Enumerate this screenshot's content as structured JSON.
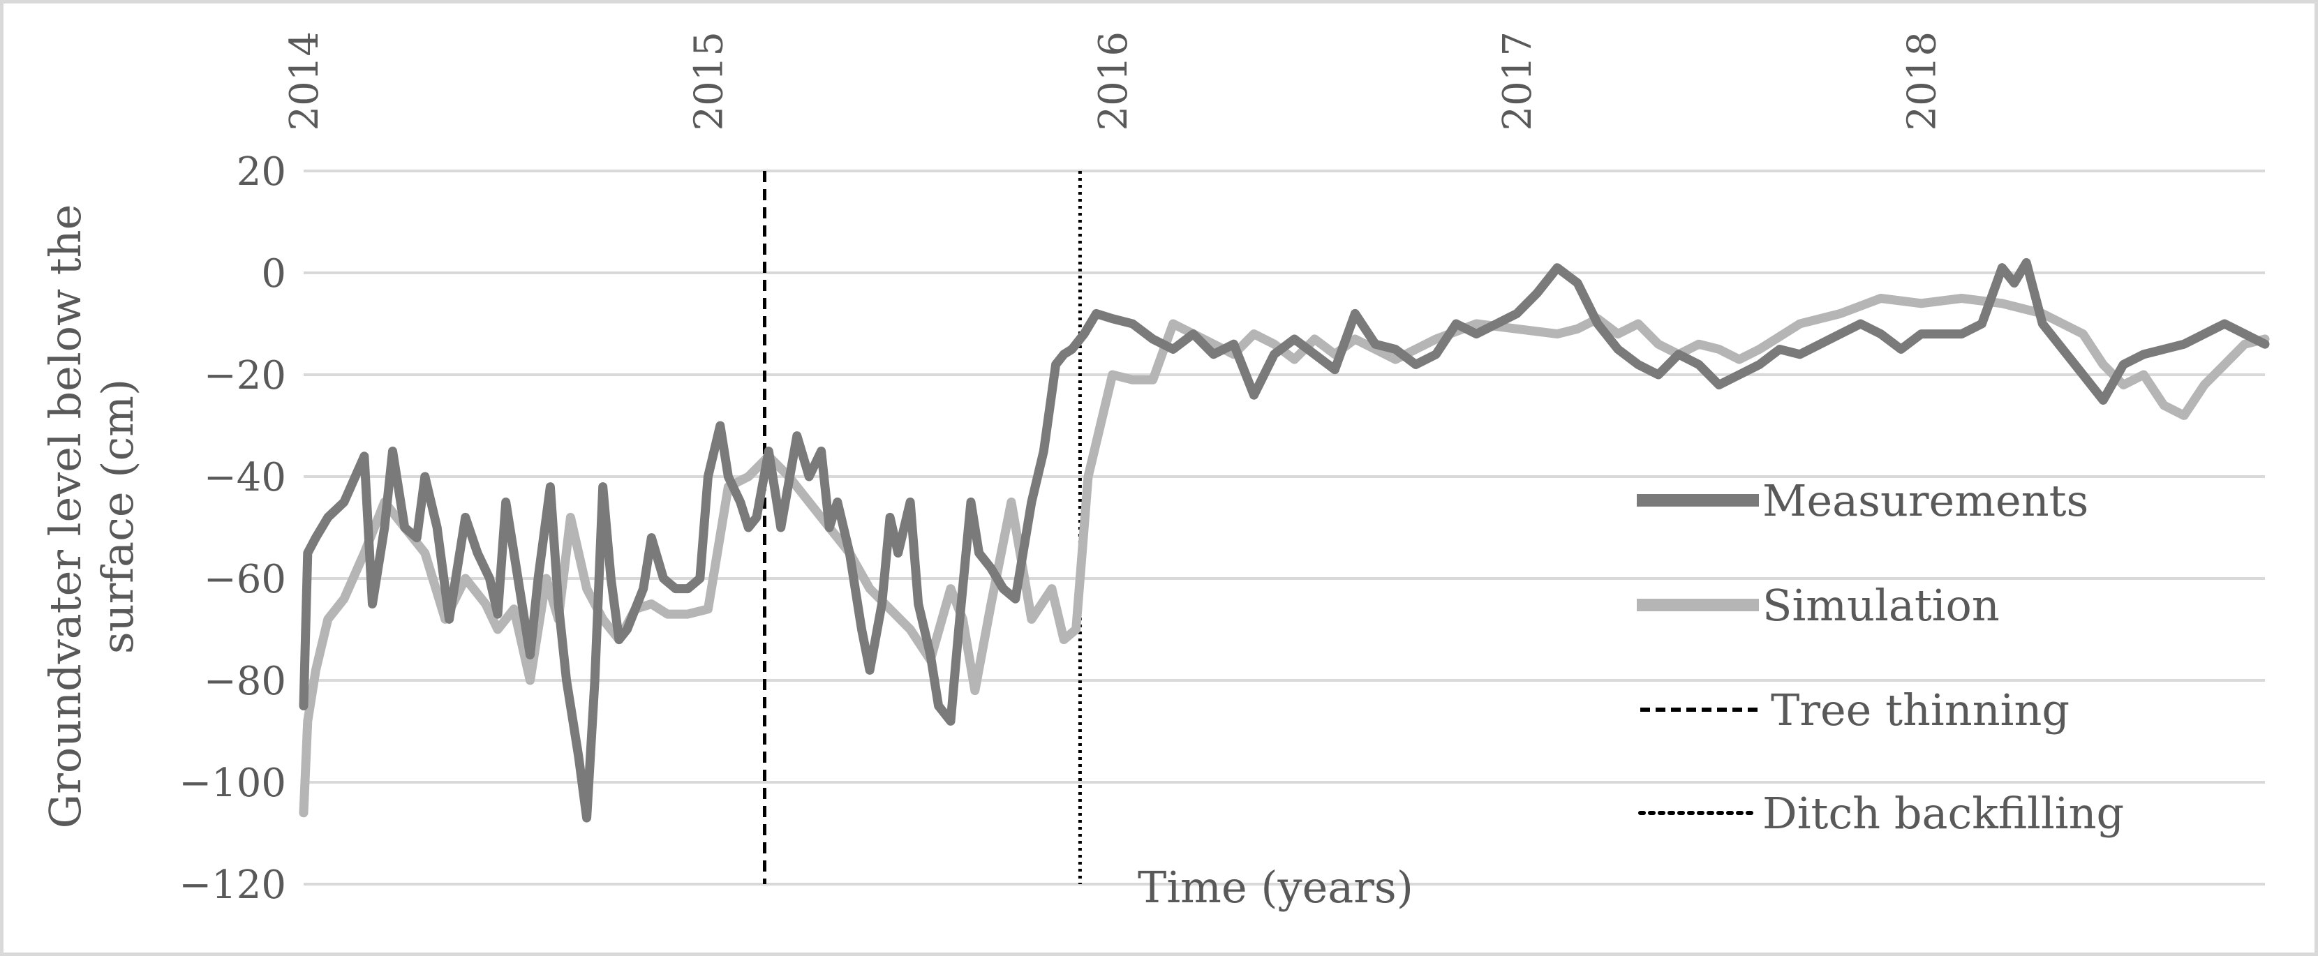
{
  "chart_data": {
    "type": "line",
    "title": "",
    "xlabel": "Time (years)",
    "ylabel_lines": [
      "Groundvater level below the",
      "surface (cm)"
    ],
    "x_ticks": [
      "2014",
      "2015",
      "2016",
      "2017",
      "2018"
    ],
    "y_ticks": [
      "20",
      "0",
      "−20",
      "−40",
      "−60",
      "−80",
      "−100",
      "−120"
    ],
    "xlim": [
      2014.0,
      2018.85
    ],
    "ylim": [
      -120,
      20
    ],
    "grid": "horizontal",
    "legend_position": "right",
    "colors": {
      "measurements": "#7a7a7a",
      "simulation": "#b5b5b5",
      "tree_thinning": "#000000",
      "ditch_backfilling": "#000000",
      "grid": "#d9d9d9",
      "text": "#595959"
    },
    "series": [
      {
        "name": "Measurements",
        "x": [
          2014.0,
          2014.01,
          2014.03,
          2014.06,
          2014.1,
          2014.15,
          2014.17,
          2014.2,
          2014.22,
          2014.25,
          2014.28,
          2014.3,
          2014.33,
          2014.36,
          2014.4,
          2014.43,
          2014.46,
          2014.48,
          2014.5,
          2014.53,
          2014.56,
          2014.58,
          2014.61,
          2014.63,
          2014.65,
          2014.68,
          2014.7,
          2014.72,
          2014.74,
          2014.76,
          2014.78,
          2014.8,
          2014.82,
          2014.84,
          2014.86,
          2014.89,
          2014.92,
          2014.95,
          2014.98,
          2015.0,
          2015.03,
          2015.05,
          2015.08,
          2015.1,
          2015.12,
          2015.15,
          2015.18,
          2015.22,
          2015.25,
          2015.28,
          2015.3,
          2015.32,
          2015.35,
          2015.38,
          2015.4,
          2015.43,
          2015.45,
          2015.47,
          2015.5,
          2015.52,
          2015.55,
          2015.57,
          2015.6,
          2015.62,
          2015.65,
          2015.67,
          2015.7,
          2015.73,
          2015.76,
          2015.8,
          2015.83,
          2015.86,
          2015.88,
          2015.9,
          2015.93,
          2015.96,
          2016.0,
          2016.05,
          2016.1,
          2016.15,
          2016.2,
          2016.25,
          2016.3,
          2016.35,
          2016.4,
          2016.45,
          2016.5,
          2016.55,
          2016.6,
          2016.65,
          2016.7,
          2016.75,
          2016.8,
          2016.85,
          2016.9,
          2016.95,
          2017.0,
          2017.05,
          2017.1,
          2017.15,
          2017.2,
          2017.25,
          2017.3,
          2017.35,
          2017.4,
          2017.45,
          2017.5,
          2017.55,
          2017.6,
          2017.65,
          2017.7,
          2017.75,
          2017.8,
          2017.85,
          2017.9,
          2017.95,
          2018.0,
          2018.05,
          2018.1,
          2018.15,
          2018.2,
          2018.23,
          2018.26,
          2018.3,
          2018.35,
          2018.4,
          2018.45,
          2018.5,
          2018.55,
          2018.6,
          2018.65,
          2018.7,
          2018.75,
          2018.8,
          2018.85
        ],
        "y": [
          -85,
          -55,
          -52,
          -48,
          -45,
          -36,
          -65,
          -50,
          -35,
          -50,
          -52,
          -40,
          -50,
          -68,
          -48,
          -55,
          -60,
          -67,
          -45,
          -60,
          -75,
          -60,
          -42,
          -65,
          -80,
          -95,
          -107,
          -80,
          -42,
          -60,
          -72,
          -70,
          -66,
          -62,
          -52,
          -60,
          -62,
          -62,
          -60,
          -40,
          -30,
          -40,
          -45,
          -50,
          -48,
          -35,
          -50,
          -32,
          -40,
          -35,
          -50,
          -45,
          -55,
          -70,
          -78,
          -65,
          -48,
          -55,
          -45,
          -65,
          -75,
          -85,
          -88,
          -70,
          -45,
          -55,
          -58,
          -62,
          -64,
          -45,
          -35,
          -18,
          -16,
          -15,
          -12,
          -8,
          -9,
          -10,
          -13,
          -15,
          -12,
          -16,
          -14,
          -24,
          -16,
          -13,
          -16,
          -19,
          -8,
          -14,
          -15,
          -18,
          -16,
          -10,
          -12,
          -10,
          -8,
          -4,
          1,
          -2,
          -10,
          -15,
          -18,
          -20,
          -16,
          -18,
          -22,
          -20,
          -18,
          -15,
          -16,
          -14,
          -12,
          -10,
          -12,
          -15,
          -12,
          -12,
          -12,
          -10,
          1,
          -2,
          2,
          -10,
          -15,
          -20,
          -25,
          -18,
          -16,
          -15,
          -14,
          -12,
          -10,
          -12,
          -14
        ],
        "legend_label": "Measurements"
      },
      {
        "name": "Simulation",
        "x": [
          2014.0,
          2014.01,
          2014.03,
          2014.06,
          2014.1,
          2014.15,
          2014.2,
          2014.25,
          2014.3,
          2014.35,
          2014.4,
          2014.45,
          2014.48,
          2014.52,
          2014.56,
          2014.6,
          2014.63,
          2014.66,
          2014.7,
          2014.74,
          2014.78,
          2014.82,
          2014.86,
          2014.9,
          2014.95,
          2015.0,
          2015.05,
          2015.1,
          2015.15,
          2015.2,
          2015.25,
          2015.3,
          2015.35,
          2015.4,
          2015.45,
          2015.5,
          2015.55,
          2015.6,
          2015.63,
          2015.66,
          2015.7,
          2015.75,
          2015.8,
          2015.85,
          2015.88,
          2015.91,
          2015.94,
          2016.0,
          2016.05,
          2016.1,
          2016.15,
          2016.2,
          2016.25,
          2016.3,
          2016.35,
          2016.4,
          2016.45,
          2016.5,
          2016.55,
          2016.6,
          2016.7,
          2016.8,
          2016.9,
          2017.0,
          2017.1,
          2017.15,
          2017.2,
          2017.25,
          2017.3,
          2017.35,
          2017.4,
          2017.45,
          2017.5,
          2017.55,
          2017.6,
          2017.7,
          2017.8,
          2017.9,
          2018.0,
          2018.1,
          2018.2,
          2018.3,
          2018.35,
          2018.4,
          2018.45,
          2018.5,
          2018.55,
          2018.6,
          2018.65,
          2018.7,
          2018.75,
          2018.8,
          2018.85
        ],
        "y": [
          -106,
          -88,
          -78,
          -68,
          -64,
          -55,
          -45,
          -50,
          -55,
          -68,
          -60,
          -65,
          -70,
          -66,
          -80,
          -60,
          -68,
          -48,
          -62,
          -68,
          -72,
          -66,
          -65,
          -67,
          -67,
          -66,
          -42,
          -40,
          -36,
          -40,
          -45,
          -50,
          -55,
          -62,
          -66,
          -70,
          -76,
          -62,
          -68,
          -82,
          -65,
          -45,
          -68,
          -62,
          -72,
          -70,
          -40,
          -20,
          -21,
          -21,
          -10,
          -12,
          -14,
          -16,
          -12,
          -14,
          -17,
          -13,
          -16,
          -13,
          -17,
          -13,
          -10,
          -11,
          -12,
          -11,
          -9,
          -12,
          -10,
          -14,
          -16,
          -14,
          -15,
          -17,
          -15,
          -10,
          -8,
          -5,
          -6,
          -5,
          -6,
          -8,
          -10,
          -12,
          -18,
          -22,
          -20,
          -26,
          -28,
          -22,
          -18,
          -14,
          -13
        ],
        "legend_label": "Simulation"
      }
    ],
    "events": [
      {
        "name": "Tree thinning",
        "x": 2015.14,
        "style": "dashed"
      },
      {
        "name": "Ditch backfilling",
        "x": 2015.92,
        "style": "dotted"
      }
    ]
  }
}
